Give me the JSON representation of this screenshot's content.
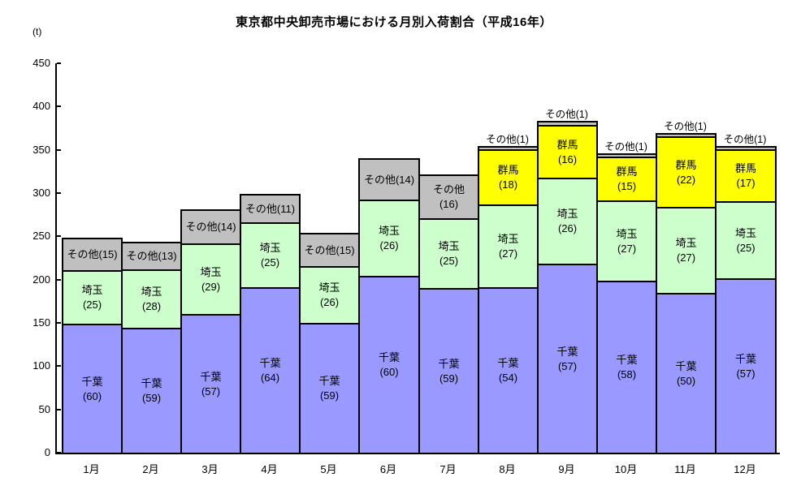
{
  "chart_data": {
    "type": "bar",
    "stacked": true,
    "title": "東京都中央卸売市場における月別入荷割合（平成16年）",
    "unit_label": "(t)",
    "xlabel": "",
    "ylabel": "(t)",
    "ylim": [
      0,
      450
    ],
    "ytick_step": 50,
    "grid": false,
    "legend_position": "none (labels drawn inside segments)",
    "series_colors": {
      "千葉": "#9999FF",
      "埼玉": "#CCFFCC",
      "群馬": "#FFFF00",
      "その他": "#C0C0C0"
    },
    "categories": [
      "1月",
      "2月",
      "3月",
      "4月",
      "5月",
      "6月",
      "7月",
      "8月",
      "9月",
      "10月",
      "11月",
      "12月"
    ],
    "series": [
      {
        "name": "千葉",
        "pct_by_month": [
          60,
          59,
          57,
          64,
          59,
          60,
          59,
          54,
          57,
          58,
          50,
          57
        ]
      },
      {
        "name": "埼玉",
        "pct_by_month": [
          25,
          28,
          29,
          25,
          26,
          26,
          25,
          27,
          26,
          27,
          27,
          25
        ]
      },
      {
        "name": "群馬",
        "pct_by_month": [
          0,
          0,
          0,
          0,
          0,
          0,
          0,
          18,
          16,
          15,
          22,
          17
        ]
      },
      {
        "name": "その他",
        "pct_by_month": [
          15,
          13,
          14,
          11,
          15,
          14,
          16,
          1,
          1,
          1,
          1,
          1
        ]
      }
    ],
    "totals_t_estimated": [
      248,
      244,
      281,
      299,
      254,
      340,
      322,
      354,
      383,
      346,
      369,
      354
    ],
    "bars": [
      {
        "month": "1月",
        "total_t": 248,
        "segments": [
          {
            "name": "千葉",
            "pct": 60,
            "lines": [
              "千葉",
              "(60)"
            ],
            "label_pos": "inside"
          },
          {
            "name": "埼玉",
            "pct": 25,
            "lines": [
              "埼玉",
              "(25)"
            ],
            "label_pos": "inside"
          },
          {
            "name": "その他",
            "pct": 15,
            "lines": [
              "その他(15)"
            ],
            "label_pos": "inside"
          }
        ]
      },
      {
        "month": "2月",
        "total_t": 244,
        "segments": [
          {
            "name": "千葉",
            "pct": 59,
            "lines": [
              "千葉",
              "(59)"
            ],
            "label_pos": "inside"
          },
          {
            "name": "埼玉",
            "pct": 28,
            "lines": [
              "埼玉",
              "(28)"
            ],
            "label_pos": "inside"
          },
          {
            "name": "その他",
            "pct": 13,
            "lines": [
              "その他(13)"
            ],
            "label_pos": "inside"
          }
        ]
      },
      {
        "month": "3月",
        "total_t": 281,
        "segments": [
          {
            "name": "千葉",
            "pct": 57,
            "lines": [
              "千葉",
              "(57)"
            ],
            "label_pos": "inside"
          },
          {
            "name": "埼玉",
            "pct": 29,
            "lines": [
              "埼玉",
              "(29)"
            ],
            "label_pos": "inside"
          },
          {
            "name": "その他",
            "pct": 14,
            "lines": [
              "その他(14)"
            ],
            "label_pos": "inside"
          }
        ]
      },
      {
        "month": "4月",
        "total_t": 299,
        "segments": [
          {
            "name": "千葉",
            "pct": 64,
            "lines": [
              "千葉",
              "(64)"
            ],
            "label_pos": "inside"
          },
          {
            "name": "埼玉",
            "pct": 25,
            "lines": [
              "埼玉",
              "(25)"
            ],
            "label_pos": "inside"
          },
          {
            "name": "その他",
            "pct": 11,
            "lines": [
              "その他(11)"
            ],
            "label_pos": "inside"
          }
        ]
      },
      {
        "month": "5月",
        "total_t": 254,
        "segments": [
          {
            "name": "千葉",
            "pct": 59,
            "lines": [
              "千葉",
              "(59)"
            ],
            "label_pos": "inside"
          },
          {
            "name": "埼玉",
            "pct": 26,
            "lines": [
              "埼玉",
              "(26)"
            ],
            "label_pos": "inside"
          },
          {
            "name": "その他",
            "pct": 15,
            "lines": [
              "その他(15)"
            ],
            "label_pos": "inside"
          }
        ]
      },
      {
        "month": "6月",
        "total_t": 340,
        "segments": [
          {
            "name": "千葉",
            "pct": 60,
            "lines": [
              "千葉",
              "(60)"
            ],
            "label_pos": "inside"
          },
          {
            "name": "埼玉",
            "pct": 26,
            "lines": [
              "埼玉",
              "(26)"
            ],
            "label_pos": "inside"
          },
          {
            "name": "その他",
            "pct": 14,
            "lines": [
              "その他(14)"
            ],
            "label_pos": "inside"
          }
        ]
      },
      {
        "month": "7月",
        "total_t": 322,
        "segments": [
          {
            "name": "千葉",
            "pct": 59,
            "lines": [
              "千葉",
              "(59)"
            ],
            "label_pos": "inside"
          },
          {
            "name": "埼玉",
            "pct": 25,
            "lines": [
              "埼玉",
              "(25)"
            ],
            "label_pos": "inside"
          },
          {
            "name": "その他",
            "pct": 16,
            "lines": [
              "その他",
              "(16)"
            ],
            "label_pos": "inside"
          }
        ]
      },
      {
        "month": "8月",
        "total_t": 354,
        "segments": [
          {
            "name": "千葉",
            "pct": 54,
            "lines": [
              "千葉",
              "(54)"
            ],
            "label_pos": "inside"
          },
          {
            "name": "埼玉",
            "pct": 27,
            "lines": [
              "埼玉",
              "(27)"
            ],
            "label_pos": "inside"
          },
          {
            "name": "群馬",
            "pct": 18,
            "lines": [
              "群馬",
              "(18)"
            ],
            "label_pos": "inside"
          },
          {
            "name": "その他",
            "pct": 1,
            "lines": [
              "その他(1)"
            ],
            "label_pos": "above"
          }
        ]
      },
      {
        "month": "9月",
        "total_t": 383,
        "segments": [
          {
            "name": "千葉",
            "pct": 57,
            "lines": [
              "千葉",
              "(57)"
            ],
            "label_pos": "inside"
          },
          {
            "name": "埼玉",
            "pct": 26,
            "lines": [
              "埼玉",
              "(26)"
            ],
            "label_pos": "inside"
          },
          {
            "name": "群馬",
            "pct": 16,
            "lines": [
              "群馬",
              "(16)"
            ],
            "label_pos": "inside"
          },
          {
            "name": "その他",
            "pct": 1,
            "lines": [
              "その他(1)"
            ],
            "label_pos": "above"
          }
        ]
      },
      {
        "month": "10月",
        "total_t": 346,
        "segments": [
          {
            "name": "千葉",
            "pct": 58,
            "lines": [
              "千葉",
              "(58)"
            ],
            "label_pos": "inside"
          },
          {
            "name": "埼玉",
            "pct": 27,
            "lines": [
              "埼玉",
              "(27)"
            ],
            "label_pos": "inside"
          },
          {
            "name": "群馬",
            "pct": 15,
            "lines": [
              "群馬",
              "(15)"
            ],
            "label_pos": "inside"
          },
          {
            "name": "その他",
            "pct": 1,
            "lines": [
              "その他(1)"
            ],
            "label_pos": "above"
          }
        ]
      },
      {
        "month": "11月",
        "total_t": 369,
        "segments": [
          {
            "name": "千葉",
            "pct": 50,
            "lines": [
              "千葉",
              "(50)"
            ],
            "label_pos": "inside"
          },
          {
            "name": "埼玉",
            "pct": 27,
            "lines": [
              "埼玉",
              "(27)"
            ],
            "label_pos": "inside"
          },
          {
            "name": "群馬",
            "pct": 22,
            "lines": [
              "群馬",
              "(22)"
            ],
            "label_pos": "inside"
          },
          {
            "name": "その他",
            "pct": 1,
            "lines": [
              "その他(1)"
            ],
            "label_pos": "above"
          }
        ]
      },
      {
        "month": "12月",
        "total_t": 354,
        "segments": [
          {
            "name": "千葉",
            "pct": 57,
            "lines": [
              "千葉",
              "(57)"
            ],
            "label_pos": "inside"
          },
          {
            "name": "埼玉",
            "pct": 25,
            "lines": [
              "埼玉",
              "(25)"
            ],
            "label_pos": "inside"
          },
          {
            "name": "群馬",
            "pct": 17,
            "lines": [
              "群馬",
              "(17)"
            ],
            "label_pos": "inside"
          },
          {
            "name": "その他",
            "pct": 1,
            "lines": [
              "その他(1)"
            ],
            "label_pos": "above"
          }
        ]
      }
    ]
  }
}
